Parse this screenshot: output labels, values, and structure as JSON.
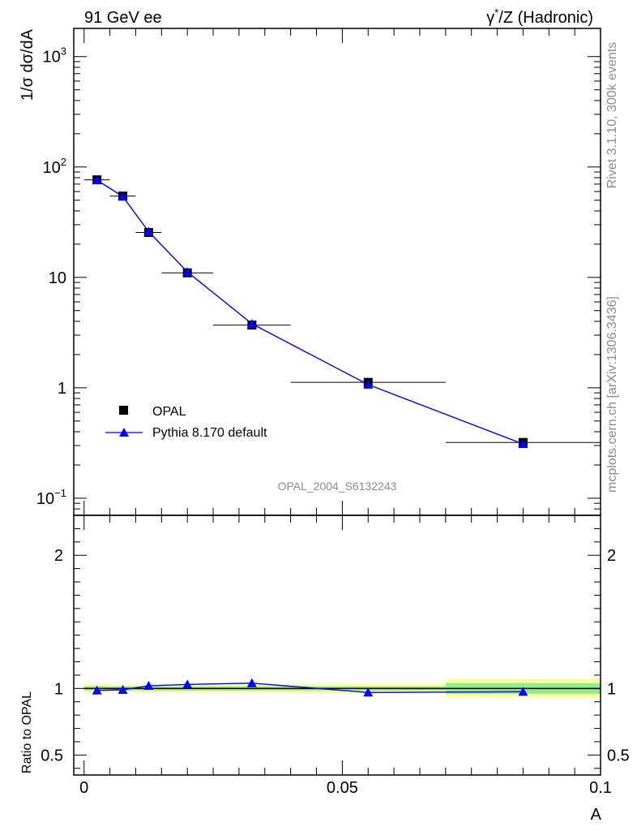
{
  "header": {
    "left_title": "91 GeV ee",
    "right_title_sym": "γ",
    "right_title_sup": "*",
    "right_title_rest": "/Z (Hadronic)"
  },
  "side_labels": {
    "rivet": "Rivet 3.1.10,  300k events",
    "mcplots": "mcplots.cern.ch [arXiv:1306.3436]"
  },
  "analysis_label": "OPAL_2004_S6132243",
  "colors": {
    "data": "#000000",
    "mc": "#0000ff",
    "band_inner": "#90ee90",
    "band_outer": "#ffff99"
  },
  "chart_data": [
    {
      "type": "scatter",
      "title": "",
      "ylabel": "1/σ dσ/dA",
      "xlabel": "",
      "yscale": "log",
      "xlim": [
        -0.002,
        0.1
      ],
      "ylim": [
        0.07,
        1800
      ],
      "y_ticks": [
        {
          "value": 0.1,
          "base": "10",
          "exp": "−1"
        },
        {
          "value": 1,
          "label": "1"
        },
        {
          "value": 10,
          "label": "10"
        },
        {
          "value": 100,
          "base": "10",
          "exp": "2"
        },
        {
          "value": 1000,
          "base": "10",
          "exp": "3"
        }
      ],
      "legend_position": "lower-left",
      "series": [
        {
          "name": "OPAL",
          "marker": "square",
          "x": [
            0.0025,
            0.0075,
            0.0125,
            0.02,
            0.0325,
            0.055,
            0.085
          ],
          "y": [
            76.5,
            54.5,
            25.5,
            11.0,
            3.7,
            1.12,
            0.32
          ],
          "bins": [
            [
              0.0,
              0.005
            ],
            [
              0.005,
              0.01
            ],
            [
              0.01,
              0.015
            ],
            [
              0.015,
              0.025
            ],
            [
              0.025,
              0.04
            ],
            [
              0.04,
              0.07
            ],
            [
              0.07,
              0.1
            ]
          ]
        },
        {
          "name": "Pythia 8.170 default",
          "marker": "triangle",
          "x": [
            0.0025,
            0.0075,
            0.0125,
            0.02,
            0.0325,
            0.055,
            0.085
          ],
          "y": [
            76.0,
            54.0,
            26.0,
            11.2,
            3.8,
            1.07,
            0.31
          ]
        }
      ]
    },
    {
      "type": "line",
      "title": "",
      "ylabel": "Ratio to OPAL",
      "xlabel": "A",
      "xlim": [
        -0.002,
        0.1
      ],
      "ylim": [
        0.35,
        2.3
      ],
      "x_ticks": [
        {
          "value": 0,
          "label": "0"
        },
        {
          "value": 0.05,
          "label": "0.05"
        },
        {
          "value": 0.1,
          "label": "0.1"
        }
      ],
      "y_ticks": [
        {
          "value": 0.5,
          "label": "0.5"
        },
        {
          "value": 1,
          "label": "1"
        },
        {
          "value": 2,
          "label": "2"
        }
      ],
      "bands": [
        {
          "x0": 0.0,
          "x1": 0.005,
          "inner": [
            0.985,
            1.015
          ],
          "outer": [
            0.97,
            1.03
          ]
        },
        {
          "x0": 0.005,
          "x1": 0.01,
          "inner": [
            0.985,
            1.015
          ],
          "outer": [
            0.975,
            1.025
          ]
        },
        {
          "x0": 0.01,
          "x1": 0.015,
          "inner": [
            0.985,
            1.015
          ],
          "outer": [
            0.97,
            1.03
          ]
        },
        {
          "x0": 0.015,
          "x1": 0.025,
          "inner": [
            0.985,
            1.015
          ],
          "outer": [
            0.97,
            1.03
          ]
        },
        {
          "x0": 0.025,
          "x1": 0.04,
          "inner": [
            0.985,
            1.015
          ],
          "outer": [
            0.97,
            1.035
          ]
        },
        {
          "x0": 0.04,
          "x1": 0.07,
          "inner": [
            0.985,
            1.015
          ],
          "outer": [
            0.965,
            1.035
          ]
        },
        {
          "x0": 0.07,
          "x1": 0.1,
          "inner": [
            0.96,
            1.04
          ],
          "outer": [
            0.93,
            1.07
          ]
        }
      ],
      "series": [
        {
          "name": "Pythia 8.170 default",
          "marker": "triangle",
          "x": [
            0.0025,
            0.0075,
            0.0125,
            0.02,
            0.0325,
            0.055,
            0.085
          ],
          "y": [
            0.985,
            0.99,
            1.02,
            1.03,
            1.04,
            0.97,
            0.975
          ]
        }
      ]
    }
  ]
}
